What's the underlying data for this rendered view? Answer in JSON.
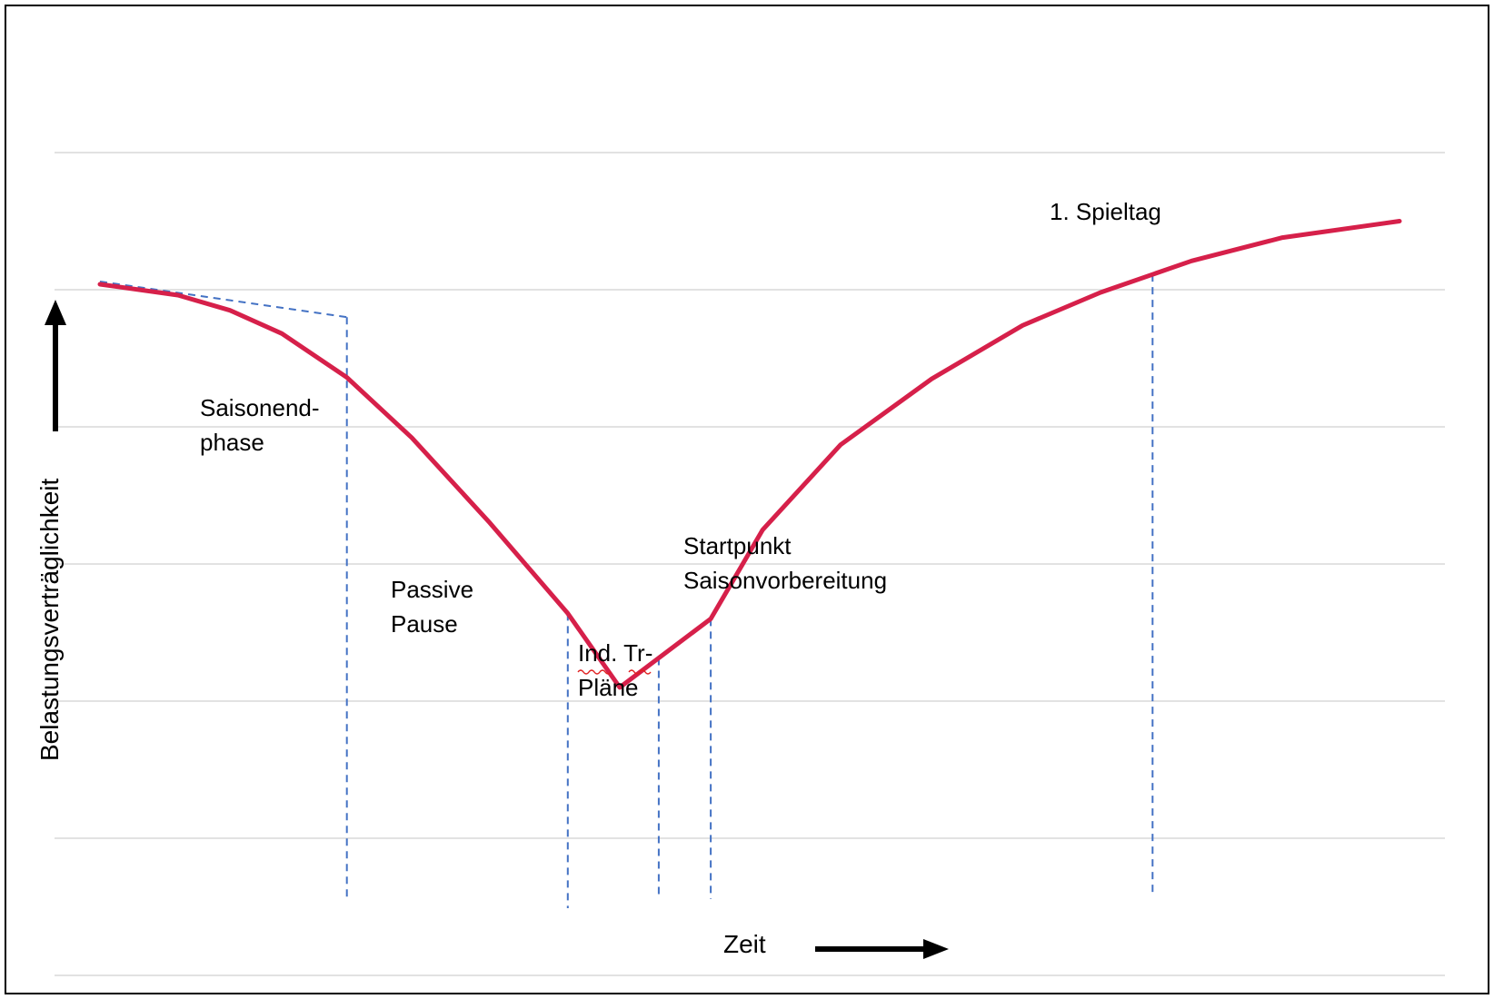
{
  "chart_data": {
    "type": "line",
    "title": "",
    "xlabel": "Zeit",
    "ylabel": "Belastungsverträglichkeit",
    "grid": true,
    "y_gridlines": 7,
    "colors": {
      "curve": "#d6204a",
      "markers": "#4472c4",
      "grid": "#d9d9d9",
      "frame": "#000000"
    },
    "series": [
      {
        "values_xy": [
          [
            0.0,
            5.04
          ],
          [
            0.06,
            4.96
          ],
          [
            0.1,
            4.85
          ],
          [
            0.14,
            4.68
          ],
          [
            0.19,
            4.36
          ],
          [
            0.24,
            3.92
          ],
          [
            0.3,
            3.3
          ],
          [
            0.36,
            2.64
          ],
          [
            0.4,
            2.1
          ],
          [
            0.47,
            2.6
          ],
          [
            0.51,
            3.25
          ],
          [
            0.57,
            3.87
          ],
          [
            0.64,
            4.35
          ],
          [
            0.71,
            4.74
          ],
          [
            0.77,
            4.98
          ],
          [
            0.84,
            5.21
          ],
          [
            0.91,
            5.38
          ],
          [
            1.0,
            5.5
          ]
        ]
      }
    ],
    "markers": [
      {
        "x": 0.19,
        "text_lines": [
          "Saisonend-",
          "phase"
        ]
      },
      {
        "x": 0.36,
        "text_lines": [
          "Passive",
          "Pause"
        ]
      },
      {
        "x": 0.43,
        "text_lines": [
          "Ind. Tr-",
          "Pläne"
        ]
      },
      {
        "x": 0.81,
        "text_lines": [
          "1. Spieltag"
        ]
      }
    ],
    "annotations": [
      {
        "text_lines": [
          "Startpunkt",
          "Saisonvorbereitung"
        ]
      }
    ],
    "tangent": {
      "from": [
        0.0,
        5.06
      ],
      "to": [
        0.19,
        4.8
      ]
    }
  }
}
